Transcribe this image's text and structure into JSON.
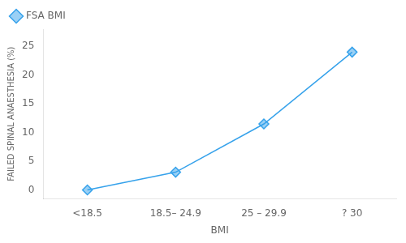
{
  "chart_data": {
    "type": "line",
    "categories": [
      "<18.5",
      "18.5– 24.9",
      "25 – 29.9",
      "? 30"
    ],
    "series": [
      {
        "name": "FSA BMI",
        "values": [
          0.0,
          3.1,
          11.5,
          24.0
        ],
        "marker": "diamond"
      }
    ],
    "xlabel": "BMI",
    "ylabel": "FAILED SPINAL ANAESTHESIA (%)",
    "ylim": [
      -1.5,
      28
    ],
    "yticks": [
      0,
      5,
      10,
      15,
      20,
      25
    ],
    "grid": false,
    "legend": "upper left"
  }
}
